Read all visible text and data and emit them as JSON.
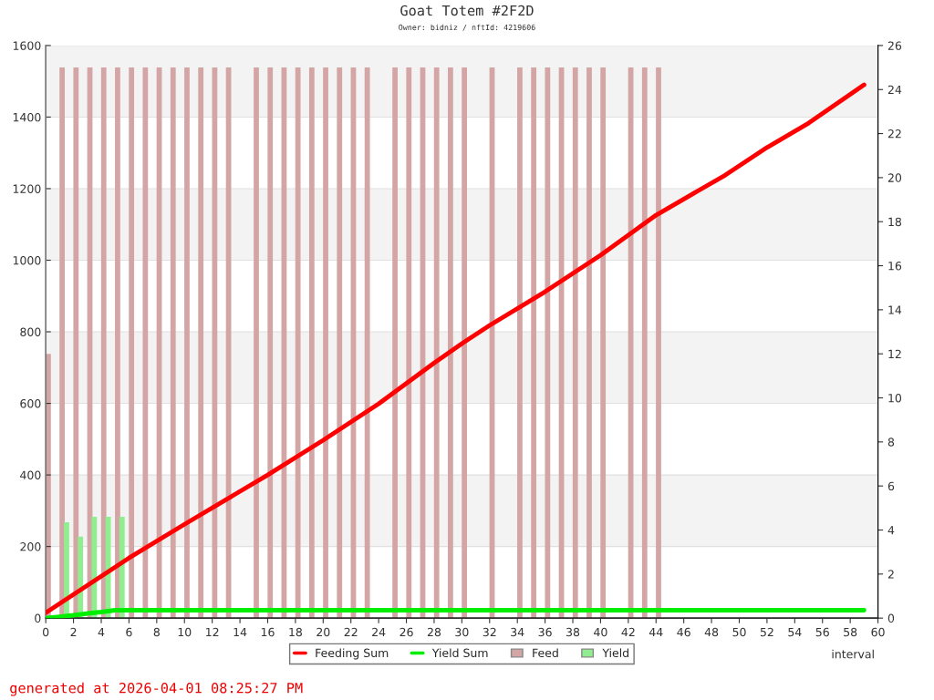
{
  "chart_data": {
    "type": "bar",
    "title": "Goat Totem #2F2D",
    "subtitle": "Owner: bidniz / nftId: 4219606",
    "xlabel": "interval",
    "xlim": [
      0,
      60
    ],
    "xticks": [
      0,
      2,
      4,
      6,
      8,
      10,
      12,
      14,
      16,
      18,
      20,
      22,
      24,
      26,
      28,
      30,
      32,
      34,
      36,
      38,
      40,
      42,
      44,
      46,
      48,
      50,
      52,
      54,
      56,
      58,
      60
    ],
    "ylim": [
      0,
      1600
    ],
    "yticks": [
      0,
      200,
      400,
      600,
      800,
      1000,
      1200,
      1400,
      1600
    ],
    "y2lim": [
      0,
      26
    ],
    "y2ticks": [
      0,
      2,
      4,
      6,
      8,
      10,
      12,
      14,
      16,
      18,
      20,
      22,
      24,
      26
    ],
    "grid": "y",
    "legend": "bottom",
    "series": [
      {
        "name": "Feeding Sum",
        "type": "line",
        "color": "#ff0000",
        "x": [
          0,
          6,
          10,
          16,
          20,
          24,
          28,
          30,
          32,
          36,
          40,
          44,
          49,
          52,
          55,
          59
        ],
        "values": [
          15,
          168,
          262,
          400,
          497,
          599,
          713,
          767,
          818,
          912,
          1014,
          1126,
          1238,
          1315,
          1383,
          1490
        ]
      },
      {
        "name": "Yield Sum",
        "type": "line",
        "color": "#00ee00",
        "x": [
          0,
          1,
          2,
          3,
          4,
          5,
          59
        ],
        "values": [
          0,
          4,
          8,
          13,
          17,
          22,
          22
        ]
      },
      {
        "name": "Feed",
        "axis": "y2",
        "color": "#d4a5a5",
        "x": [
          0,
          1,
          2,
          3,
          4,
          5,
          6,
          7,
          8,
          9,
          10,
          11,
          12,
          13,
          15,
          16,
          17,
          18,
          19,
          20,
          21,
          22,
          23,
          25,
          26,
          27,
          28,
          29,
          30,
          32,
          34,
          35,
          36,
          37,
          38,
          39,
          40,
          42,
          43,
          44
        ],
        "values": [
          12,
          25,
          25,
          25,
          25,
          25,
          25,
          25,
          25,
          25,
          25,
          25,
          25,
          25,
          25,
          25,
          25,
          25,
          25,
          25,
          25,
          25,
          25,
          25,
          25,
          25,
          25,
          25,
          25,
          25,
          25,
          25,
          25,
          25,
          25,
          25,
          25,
          25,
          25,
          25
        ]
      },
      {
        "name": "Yield",
        "axis": "y2",
        "color": "#90ee90",
        "x": [
          1,
          2,
          3,
          4,
          5
        ],
        "values": [
          4.35,
          3.7,
          4.6,
          4.6,
          4.6
        ]
      }
    ],
    "annotations": [
      "generated at 2026-04-01 08:25:27 PM"
    ]
  }
}
